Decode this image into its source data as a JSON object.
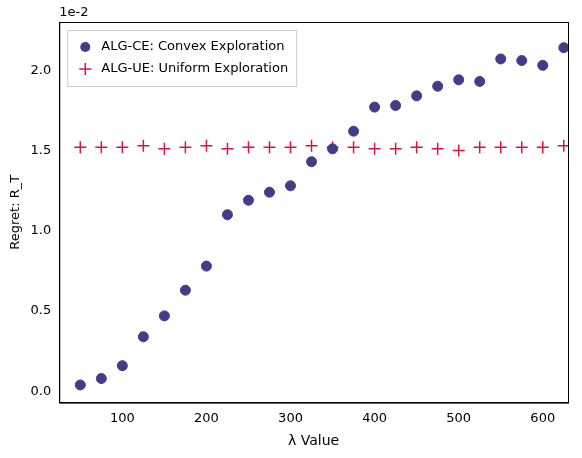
{
  "chart_data": {
    "type": "scatter",
    "x_label": "λ Value",
    "y_label": "Regret: R_T",
    "y_offset_label": "1e-2",
    "x": [
      50,
      75,
      100,
      125,
      150,
      175,
      200,
      225,
      250,
      275,
      300,
      325,
      350,
      375,
      400,
      425,
      450,
      475,
      500,
      525,
      550,
      575,
      600,
      625
    ],
    "series": [
      {
        "name": "ALG-CE: Convex Exploration",
        "color": "#433d88",
        "marker": "circle",
        "values": [
          0.04,
          0.08,
          0.16,
          0.34,
          0.47,
          0.63,
          0.78,
          1.1,
          1.19,
          1.24,
          1.28,
          1.43,
          1.51,
          1.62,
          1.77,
          1.78,
          1.84,
          1.9,
          1.94,
          1.93,
          2.07,
          2.06,
          2.03,
          2.14
        ]
      },
      {
        "name": "ALG-UE: Uniform Exploration",
        "color": "#dc143c",
        "marker": "plus",
        "values": [
          1.52,
          1.52,
          1.52,
          1.53,
          1.51,
          1.52,
          1.53,
          1.51,
          1.52,
          1.52,
          1.52,
          1.53,
          1.52,
          1.52,
          1.51,
          1.51,
          1.52,
          1.51,
          1.5,
          1.52,
          1.52,
          1.52,
          1.52,
          1.53
        ]
      }
    ],
    "xlim": [
      25,
      630
    ],
    "xticks": [
      100,
      200,
      300,
      400,
      500,
      600
    ],
    "ylim": [
      -0.07,
      2.3
    ],
    "yticks": [
      {
        "value": 0,
        "label": "0.0"
      },
      {
        "value": 0.5,
        "label": "0.5"
      },
      {
        "value": 1,
        "label": "1.0"
      },
      {
        "value": 1.5,
        "label": "1.5"
      },
      {
        "value": 2,
        "label": "2.0"
      }
    ],
    "grid": false,
    "legend": "upper left"
  }
}
